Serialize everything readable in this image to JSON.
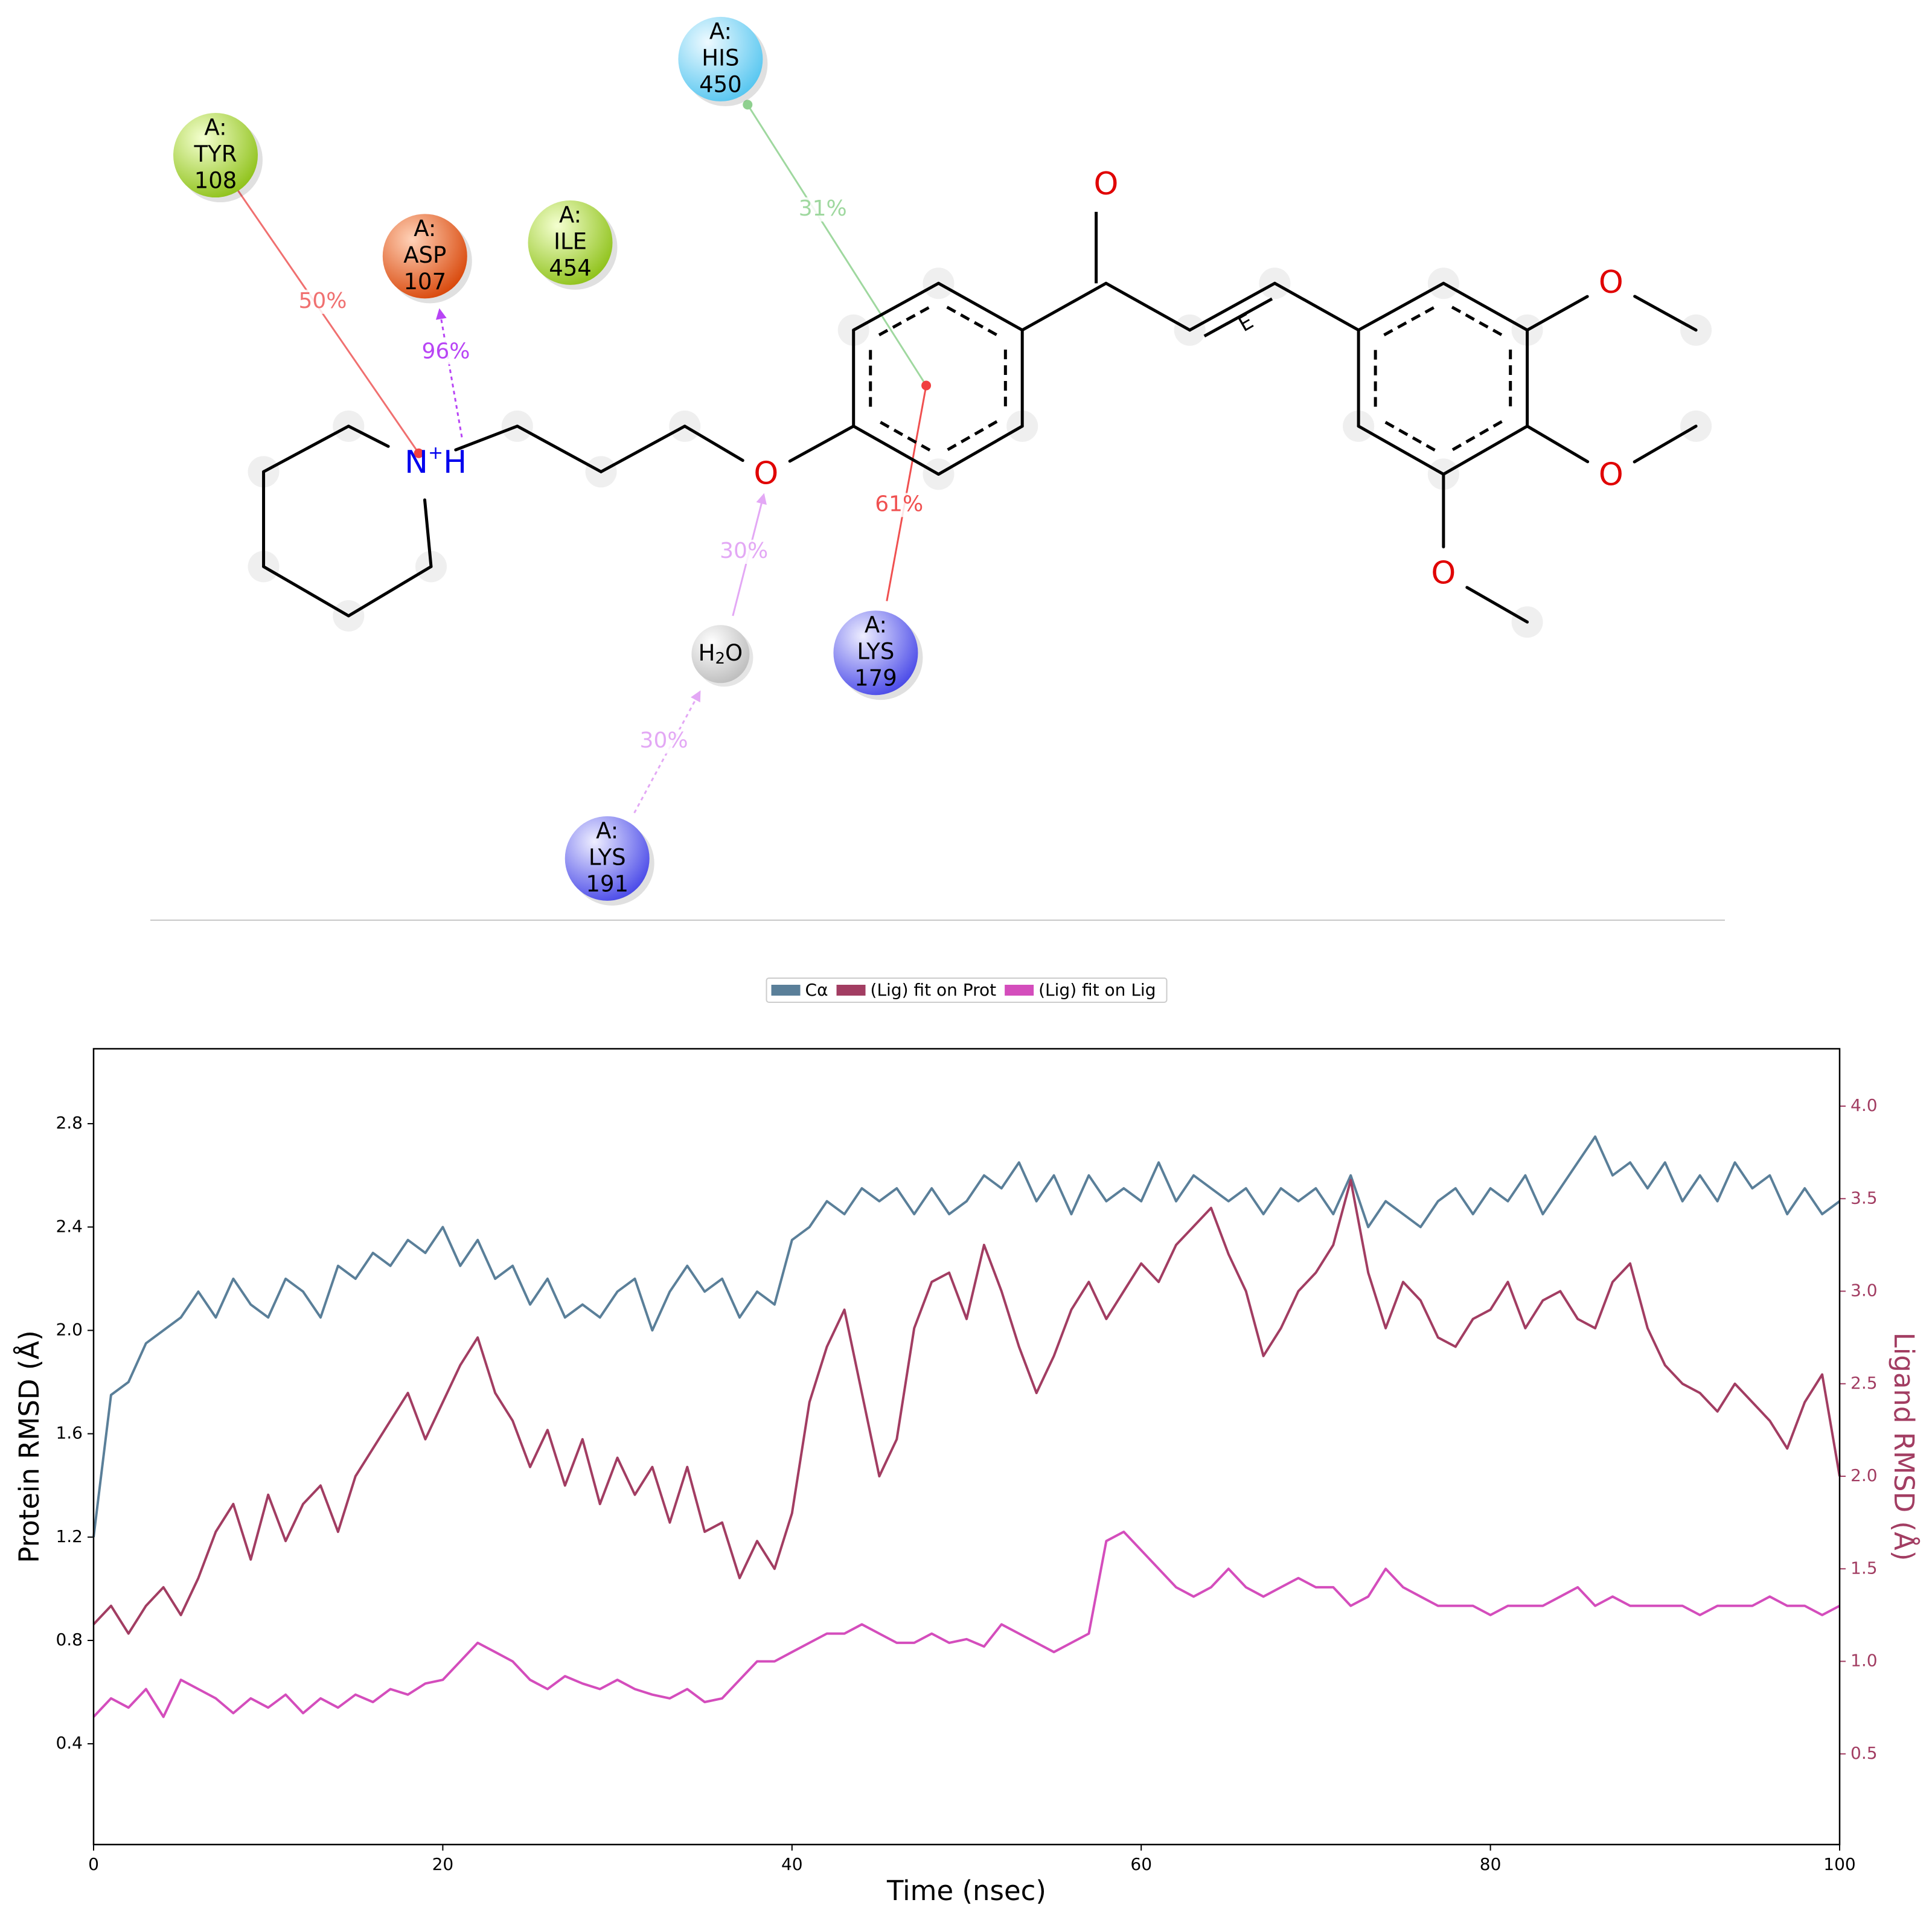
{
  "diagram": {
    "residues": [
      {
        "chain": "A:",
        "name": "TYR",
        "number": "108"
      },
      {
        "chain": "A:",
        "name": "ASP",
        "number": "107"
      },
      {
        "chain": "A:",
        "name": "ILE",
        "number": "454"
      },
      {
        "chain": "A:",
        "name": "HIS",
        "number": "450"
      },
      {
        "chain": "A:",
        "name": "LYS",
        "number": "179"
      },
      {
        "chain": "A:",
        "name": "LYS",
        "number": "191"
      }
    ],
    "water": [
      "H",
      "2",
      "O"
    ],
    "ammonium": [
      "N",
      "+",
      "H"
    ],
    "oxygen_label": "O",
    "stereo_label": "E",
    "interactions": [
      "50%",
      "96%",
      "31%",
      "61%",
      "30%",
      "30%"
    ]
  },
  "chart_data": {
    "type": "line",
    "xlabel": "Time (nsec)",
    "ylabel": "Protein RMSD (Å)",
    "y2label": "Ligand RMSD (Å)",
    "xlim": [
      0,
      100
    ],
    "xticks": [
      0,
      20,
      40,
      60,
      80,
      100
    ],
    "ylim": [
      0.01,
      3.09
    ],
    "yticks": [
      0.4,
      0.8,
      1.2,
      1.6,
      {
        "value": 2,
        "label": "2.0"
      },
      2.4,
      2.8
    ],
    "y2lim": [
      0.01,
      4.31
    ],
    "y2ticks": [
      0.5,
      {
        "value": 1,
        "label": "1.0"
      },
      1.5,
      {
        "value": 2,
        "label": "2.0"
      },
      2.5,
      {
        "value": 3,
        "label": "3.0"
      },
      3.5,
      {
        "value": 4,
        "label": "4.0"
      }
    ],
    "x": [
      0,
      1,
      2,
      3,
      4,
      5,
      6,
      7,
      8,
      9,
      10,
      11,
      12,
      13,
      14,
      15,
      16,
      17,
      18,
      19,
      20,
      21,
      22,
      23,
      24,
      25,
      26,
      27,
      28,
      29,
      30,
      31,
      32,
      33,
      34,
      35,
      36,
      37,
      38,
      39,
      40,
      41,
      42,
      43,
      44,
      45,
      46,
      47,
      48,
      49,
      50,
      51,
      52,
      53,
      54,
      55,
      56,
      57,
      58,
      59,
      60,
      61,
      62,
      63,
      64,
      65,
      66,
      67,
      68,
      69,
      70,
      71,
      72,
      73,
      74,
      75,
      76,
      77,
      78,
      79,
      80,
      81,
      82,
      83,
      84,
      85,
      86,
      87,
      88,
      89,
      90,
      91,
      92,
      93,
      94,
      95,
      96,
      97,
      98,
      99,
      100
    ],
    "series": [
      {
        "name": "Cα",
        "color": "#5a7f99",
        "axis": "y",
        "values": [
          1.2,
          1.75,
          1.8,
          1.95,
          2.0,
          2.05,
          2.15,
          2.05,
          2.2,
          2.1,
          2.05,
          2.2,
          2.15,
          2.05,
          2.25,
          2.2,
          2.3,
          2.25,
          2.35,
          2.3,
          2.4,
          2.25,
          2.35,
          2.2,
          2.25,
          2.1,
          2.2,
          2.05,
          2.1,
          2.05,
          2.15,
          2.2,
          2.0,
          2.15,
          2.25,
          2.15,
          2.2,
          2.05,
          2.15,
          2.1,
          2.35,
          2.4,
          2.5,
          2.45,
          2.55,
          2.5,
          2.55,
          2.45,
          2.55,
          2.45,
          2.5,
          2.6,
          2.55,
          2.65,
          2.5,
          2.6,
          2.45,
          2.6,
          2.5,
          2.55,
          2.5,
          2.65,
          2.5,
          2.6,
          2.55,
          2.5,
          2.55,
          2.45,
          2.55,
          2.5,
          2.55,
          2.45,
          2.6,
          2.4,
          2.5,
          2.45,
          2.4,
          2.5,
          2.55,
          2.45,
          2.55,
          2.5,
          2.6,
          2.45,
          2.55,
          2.65,
          2.75,
          2.6,
          2.65,
          2.55,
          2.65,
          2.5,
          2.6,
          2.5,
          2.65,
          2.55,
          2.6,
          2.45,
          2.55,
          2.45,
          2.5
        ]
      },
      {
        "name": "(Lig) fit on Prot",
        "color": "#a23d62",
        "axis": "y2",
        "values": [
          1.2,
          1.3,
          1.15,
          1.3,
          1.4,
          1.25,
          1.45,
          1.7,
          1.85,
          1.55,
          1.9,
          1.65,
          1.85,
          1.95,
          1.7,
          2.0,
          2.15,
          2.3,
          2.45,
          2.2,
          2.4,
          2.6,
          2.75,
          2.45,
          2.3,
          2.05,
          2.25,
          1.95,
          2.2,
          1.85,
          2.1,
          1.9,
          2.05,
          1.75,
          2.05,
          1.7,
          1.75,
          1.45,
          1.65,
          1.5,
          1.8,
          2.4,
          2.7,
          2.9,
          2.45,
          2.0,
          2.2,
          2.8,
          3.05,
          3.1,
          2.85,
          3.25,
          3.0,
          2.7,
          2.45,
          2.65,
          2.9,
          3.05,
          2.85,
          3.0,
          3.15,
          3.05,
          3.25,
          3.35,
          3.45,
          3.2,
          3.0,
          2.65,
          2.8,
          3.0,
          3.1,
          3.25,
          3.6,
          3.1,
          2.8,
          3.05,
          2.95,
          2.75,
          2.7,
          2.85,
          2.9,
          3.05,
          2.8,
          2.95,
          3.0,
          2.85,
          2.8,
          3.05,
          3.15,
          2.8,
          2.6,
          2.5,
          2.45,
          2.35,
          2.5,
          2.4,
          2.3,
          2.15,
          2.4,
          2.55,
          2.0
        ]
      },
      {
        "name": "(Lig) fit on Lig",
        "color": "#d44dbc",
        "axis": "y2",
        "values": [
          0.7,
          0.8,
          0.75,
          0.85,
          0.7,
          0.9,
          0.85,
          0.8,
          0.72,
          0.8,
          0.75,
          0.82,
          0.72,
          0.8,
          0.75,
          0.82,
          0.78,
          0.85,
          0.82,
          0.88,
          0.9,
          1.0,
          1.1,
          1.05,
          1.0,
          0.9,
          0.85,
          0.92,
          0.88,
          0.85,
          0.9,
          0.85,
          0.82,
          0.8,
          0.85,
          0.78,
          0.8,
          0.9,
          1.0,
          1.0,
          1.05,
          1.1,
          1.15,
          1.15,
          1.2,
          1.15,
          1.1,
          1.1,
          1.15,
          1.1,
          1.12,
          1.08,
          1.2,
          1.15,
          1.1,
          1.05,
          1.1,
          1.15,
          1.65,
          1.7,
          1.6,
          1.5,
          1.4,
          1.35,
          1.4,
          1.5,
          1.4,
          1.35,
          1.4,
          1.45,
          1.4,
          1.4,
          1.3,
          1.35,
          1.5,
          1.4,
          1.35,
          1.3,
          1.3,
          1.3,
          1.25,
          1.3,
          1.3,
          1.3,
          1.35,
          1.4,
          1.3,
          1.35,
          1.3,
          1.3,
          1.3,
          1.3,
          1.25,
          1.3,
          1.3,
          1.3,
          1.35,
          1.3,
          1.3,
          1.25,
          1.3
        ]
      }
    ],
    "legend": "upper center",
    "grid": false
  }
}
